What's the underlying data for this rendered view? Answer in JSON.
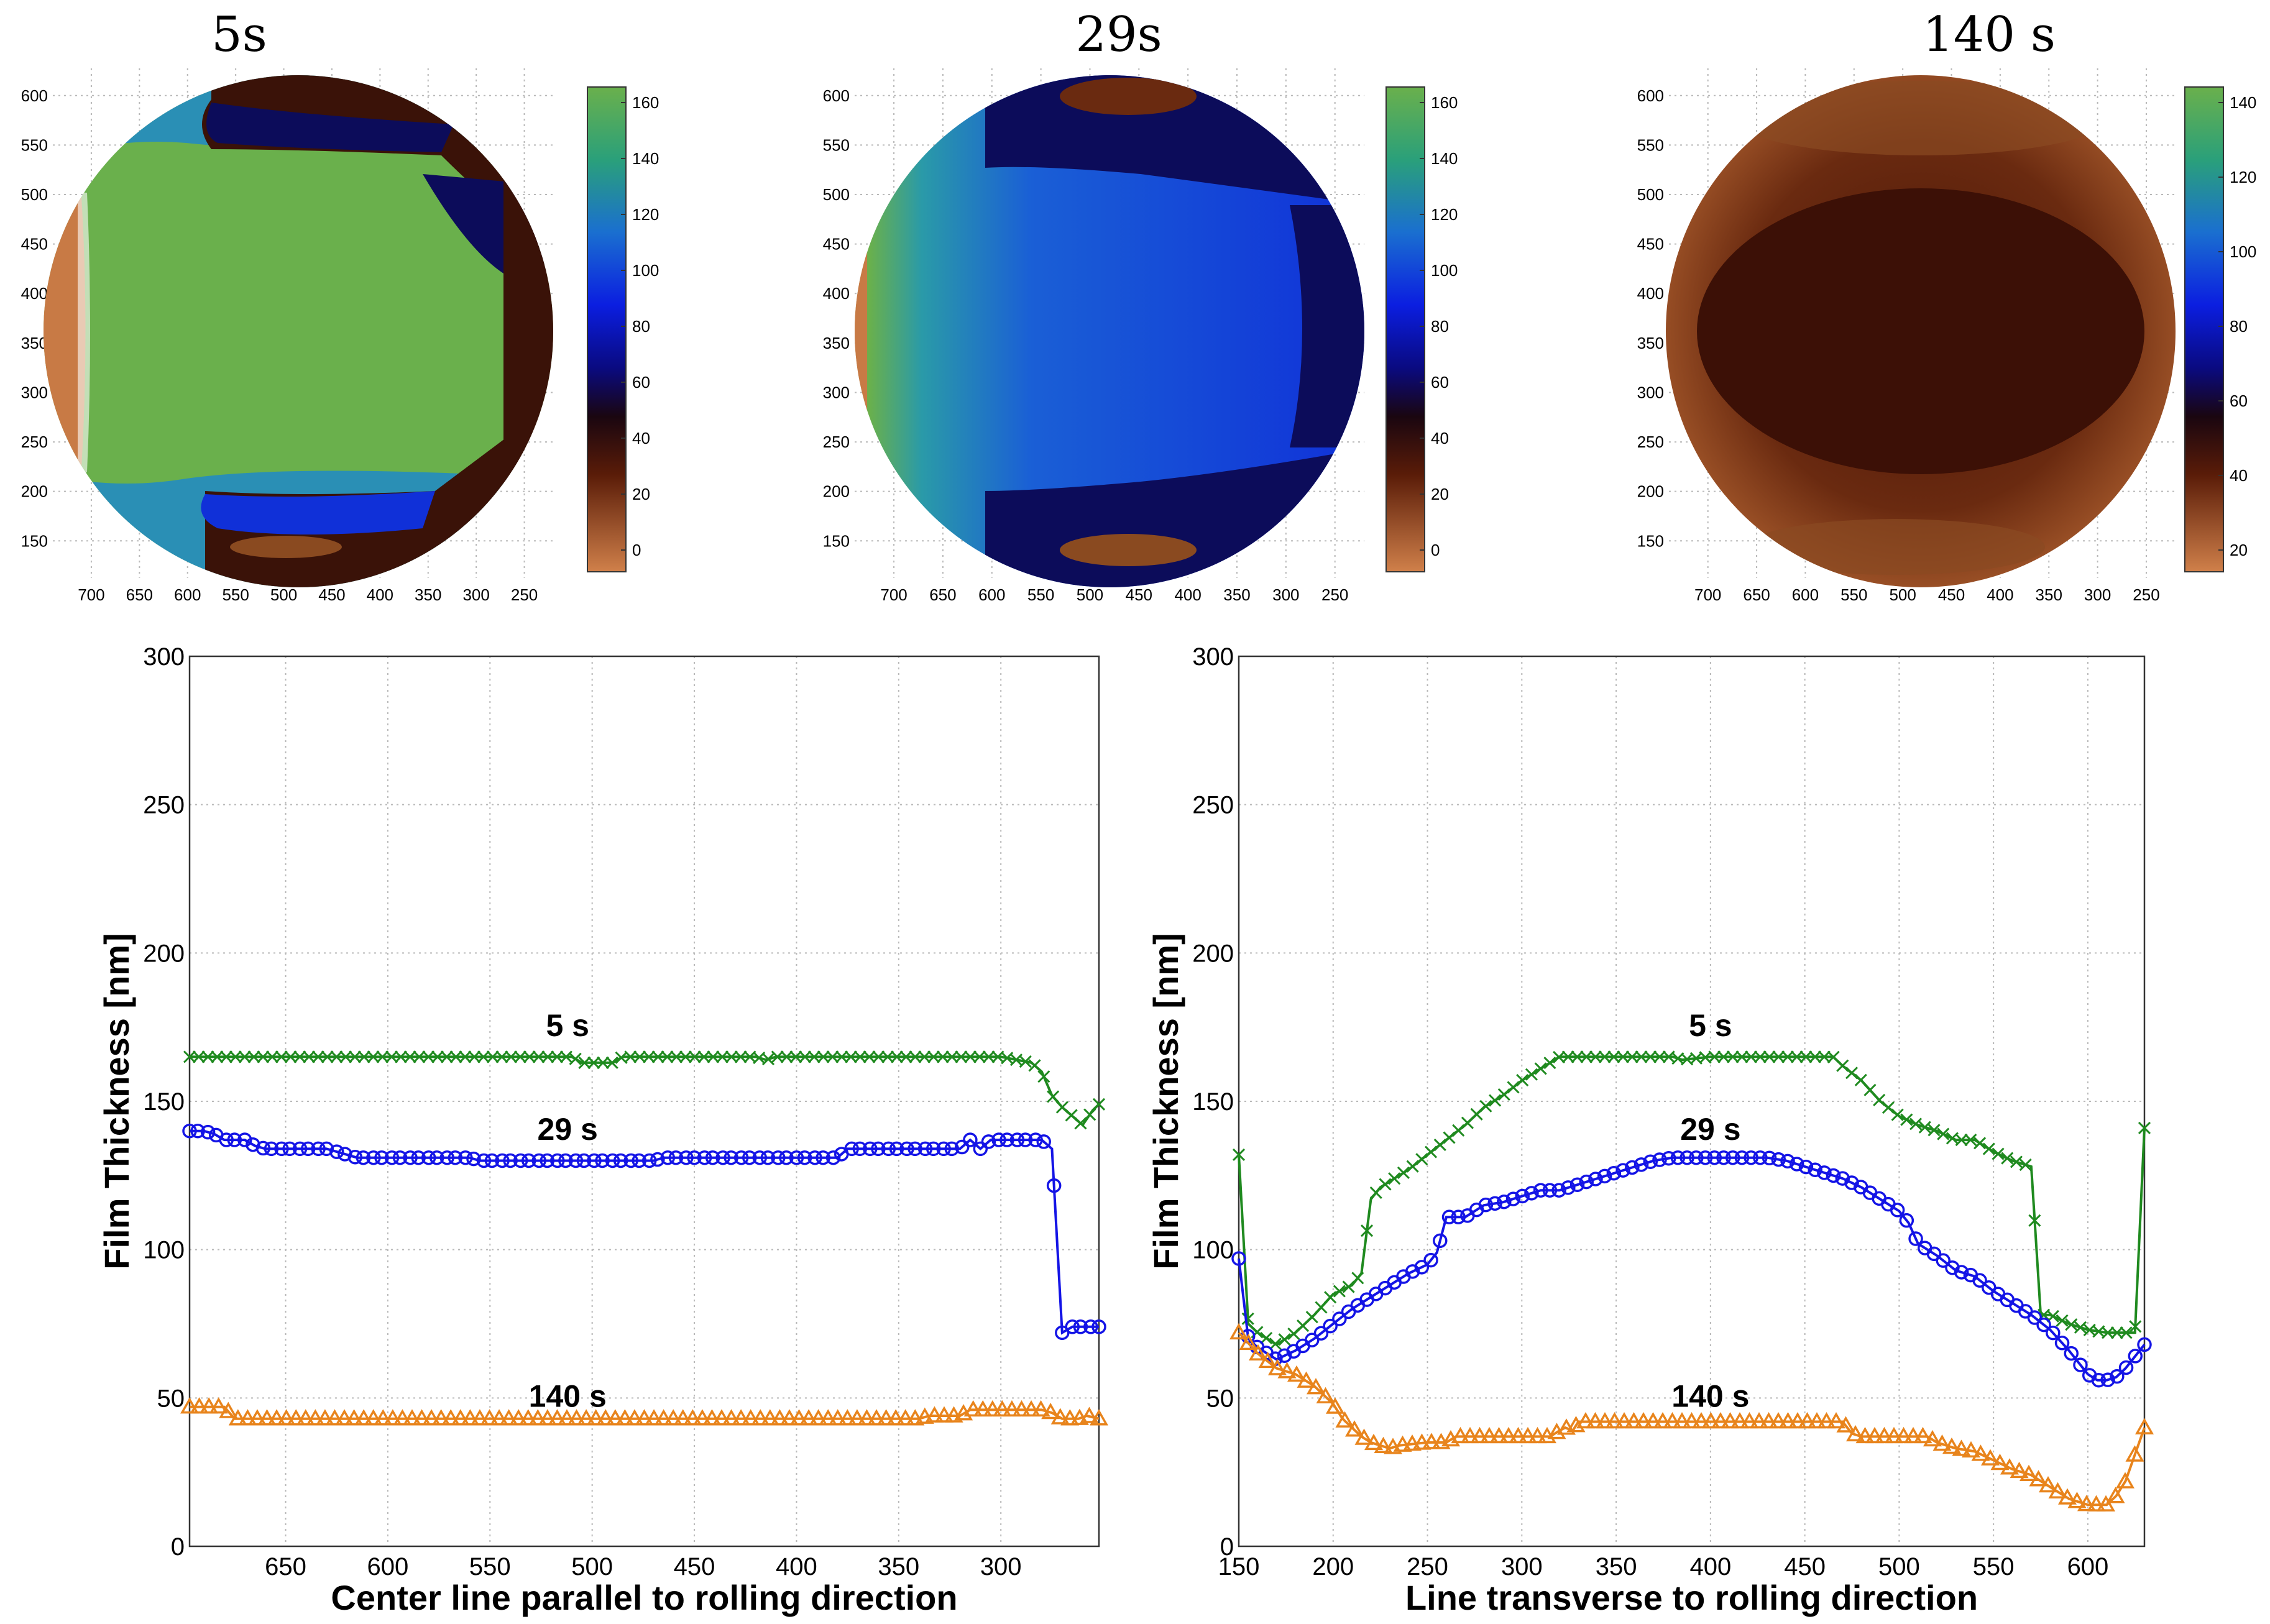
{
  "colors": {
    "green": "#1f8a1f",
    "blue": "#1414e6",
    "orange": "#e8841c",
    "map_copper": "#c87a45",
    "map_dark": "#3a1208",
    "map_navy": "#0c0c5a",
    "map_blue": "#1030d8",
    "map_teal": "#2a8fb5",
    "map_green": "#6ab04c"
  },
  "maps": [
    {
      "title": "5s",
      "x_ticks": [
        "700",
        "650",
        "600",
        "550",
        "500",
        "450",
        "400",
        "350",
        "300",
        "250"
      ],
      "y_ticks": [
        "600",
        "550",
        "500",
        "450",
        "400",
        "350",
        "300",
        "250",
        "200",
        "150"
      ],
      "colorbar_ticks": [
        "160",
        "140",
        "120",
        "100",
        "80",
        "60",
        "40",
        "20",
        "0"
      ]
    },
    {
      "title": "29s",
      "x_ticks": [
        "700",
        "650",
        "600",
        "550",
        "500",
        "450",
        "400",
        "350",
        "300",
        "250"
      ],
      "y_ticks": [
        "600",
        "550",
        "500",
        "450",
        "400",
        "350",
        "300",
        "250",
        "200",
        "150"
      ],
      "colorbar_ticks": [
        "160",
        "140",
        "120",
        "100",
        "80",
        "60",
        "40",
        "20",
        "0"
      ]
    },
    {
      "title": "140 s",
      "x_ticks": [
        "700",
        "650",
        "600",
        "550",
        "500",
        "450",
        "400",
        "350",
        "300",
        "250"
      ],
      "y_ticks": [
        "600",
        "550",
        "500",
        "450",
        "400",
        "350",
        "300",
        "250",
        "200",
        "150"
      ],
      "colorbar_ticks": [
        "140",
        "120",
        "100",
        "80",
        "60",
        "40",
        "20"
      ]
    }
  ],
  "chart_data": [
    {
      "type": "line",
      "title": "",
      "xlabel": "Center line parallel to rolling direction",
      "ylabel": "Film Thickness [nm]",
      "xlim": [
        697,
        252
      ],
      "ylim": [
        0,
        300
      ],
      "x_ticks": [
        650,
        600,
        550,
        500,
        450,
        400,
        350,
        300
      ],
      "y_ticks": [
        0,
        50,
        100,
        150,
        200,
        250,
        300
      ],
      "grid": true,
      "series": [
        {
          "name": "5 s",
          "label_at": [
            512,
            172
          ],
          "marker": "x",
          "x": [
            697,
            650,
            600,
            550,
            510,
            505,
            500,
            490,
            485,
            450,
            420,
            415,
            410,
            350,
            300,
            285,
            280,
            275,
            270,
            265,
            260,
            255,
            252
          ],
          "y": [
            165,
            165,
            165,
            165,
            165,
            163,
            163,
            163,
            165,
            165,
            165,
            164,
            165,
            165,
            165,
            163,
            160,
            152,
            148,
            145,
            142,
            147,
            149
          ]
        },
        {
          "name": "29 s",
          "label_at": [
            512,
            137
          ],
          "marker": "o",
          "x": [
            697,
            690,
            685,
            680,
            670,
            665,
            660,
            630,
            625,
            615,
            560,
            555,
            470,
            465,
            380,
            375,
            320,
            315,
            310,
            305,
            300,
            280,
            275,
            270,
            265,
            260,
            252
          ],
          "y": [
            140,
            140,
            139,
            137,
            137,
            135,
            134,
            134,
            133,
            131,
            131,
            130,
            130,
            131,
            131,
            134,
            134,
            137,
            134,
            137,
            137,
            137,
            134,
            72,
            74,
            74,
            74
          ],
          "markers_x": [
            697,
            693,
            688,
            684,
            679,
            675,
            670,
            666,
            661,
            657,
            652,
            648,
            643,
            639,
            634,
            630,
            625,
            621,
            616,
            612,
            607,
            603,
            598,
            594,
            589,
            585,
            580,
            576,
            571,
            567,
            562,
            558,
            553,
            549,
            544,
            540,
            535,
            531,
            526,
            522,
            517,
            513,
            508,
            504,
            499,
            495,
            490,
            486,
            481,
            477,
            472,
            468,
            463,
            459,
            454,
            450,
            445,
            441,
            436,
            432,
            427,
            423,
            418,
            414,
            409,
            405,
            400,
            396,
            391,
            387,
            382,
            378,
            373,
            369,
            364,
            360,
            355,
            351,
            346,
            342,
            337,
            333,
            328,
            324,
            319,
            315,
            310,
            306,
            301,
            297,
            292,
            288,
            283,
            279,
            274,
            270,
            265,
            261,
            256,
            252
          ]
        },
        {
          "name": "140 s",
          "label_at": [
            512,
            47
          ],
          "marker": "^",
          "x": [
            697,
            680,
            675,
            600,
            500,
            400,
            340,
            335,
            320,
            315,
            305,
            280,
            275,
            270,
            262,
            258,
            252
          ],
          "y": [
            47,
            47,
            43,
            43,
            43,
            43,
            43,
            44,
            44,
            46,
            46,
            46,
            45,
            43,
            43,
            44,
            43
          ]
        }
      ]
    },
    {
      "type": "line",
      "title": "",
      "xlabel": "Line transverse to rolling direction",
      "ylabel": "Film Thickness [nm]",
      "xlim": [
        150,
        630
      ],
      "ylim": [
        0,
        300
      ],
      "x_ticks": [
        150,
        200,
        250,
        300,
        350,
        400,
        450,
        500,
        550,
        600
      ],
      "y_ticks": [
        0,
        50,
        100,
        150,
        200,
        250,
        300
      ],
      "grid": true,
      "series": [
        {
          "name": "5 s",
          "label_at": [
            400,
            172
          ],
          "marker": "x",
          "x": [
            150,
            155,
            160,
            170,
            180,
            190,
            200,
            210,
            215,
            220,
            225,
            240,
            250,
            260,
            270,
            280,
            290,
            300,
            310,
            320,
            350,
            380,
            385,
            400,
            420,
            450,
            465,
            470,
            480,
            490,
            500,
            510,
            520,
            530,
            540,
            550,
            560,
            570,
            575,
            580,
            590,
            600,
            610,
            620,
            625,
            630
          ],
          "y": [
            132,
            75,
            72,
            68,
            72,
            78,
            85,
            88,
            92,
            117,
            121,
            127,
            132,
            137,
            142,
            148,
            152,
            157,
            161,
            165,
            165,
            165,
            164,
            165,
            165,
            165,
            165,
            162,
            157,
            150,
            145,
            142,
            140,
            137,
            137,
            133,
            130,
            128,
            78,
            78,
            75,
            73,
            72,
            72,
            72,
            141
          ]
        },
        {
          "name": "29 s",
          "label_at": [
            400,
            137
          ],
          "marker": "o",
          "x": [
            150,
            155,
            160,
            170,
            180,
            190,
            200,
            210,
            220,
            230,
            240,
            250,
            255,
            260,
            270,
            280,
            290,
            300,
            310,
            320,
            330,
            340,
            350,
            360,
            370,
            380,
            390,
            400,
            410,
            420,
            430,
            440,
            450,
            460,
            470,
            480,
            490,
            500,
            505,
            510,
            520,
            530,
            540,
            550,
            560,
            570,
            580,
            590,
            595,
            600,
            605,
            610,
            615,
            620,
            625,
            630
          ],
          "y": [
            97,
            70,
            67,
            63,
            66,
            70,
            75,
            80,
            84,
            88,
            92,
            95,
            99,
            111,
            111,
            115,
            116,
            118,
            120,
            120,
            122,
            124,
            126,
            128,
            130,
            131,
            131,
            131,
            131,
            131,
            131,
            130,
            128,
            126,
            124,
            121,
            117,
            113,
            109,
            102,
            98,
            93,
            91,
            86,
            82,
            78,
            73,
            66,
            62,
            58,
            56,
            56,
            57,
            60,
            64,
            68
          ]
        },
        {
          "name": "140 s",
          "label_at": [
            400,
            47
          ],
          "marker": "^",
          "x": [
            150,
            160,
            170,
            180,
            190,
            200,
            205,
            210,
            215,
            220,
            230,
            235,
            250,
            260,
            265,
            270,
            280,
            300,
            315,
            320,
            323,
            327,
            330,
            350,
            400,
            450,
            470,
            475,
            480,
            500,
            515,
            520,
            530,
            540,
            550,
            560,
            570,
            580,
            590,
            600,
            610,
            615,
            620,
            625,
            630
          ],
          "y": [
            72,
            65,
            60,
            58,
            54,
            48,
            43,
            40,
            37,
            35,
            33,
            34,
            35,
            35,
            37,
            37,
            37,
            37,
            37,
            39,
            40,
            39,
            42,
            42,
            42,
            42,
            42,
            38,
            37,
            37,
            37,
            35,
            33,
            32,
            29,
            26,
            24,
            20,
            16,
            14,
            14,
            17,
            22,
            31,
            40
          ]
        }
      ]
    }
  ]
}
